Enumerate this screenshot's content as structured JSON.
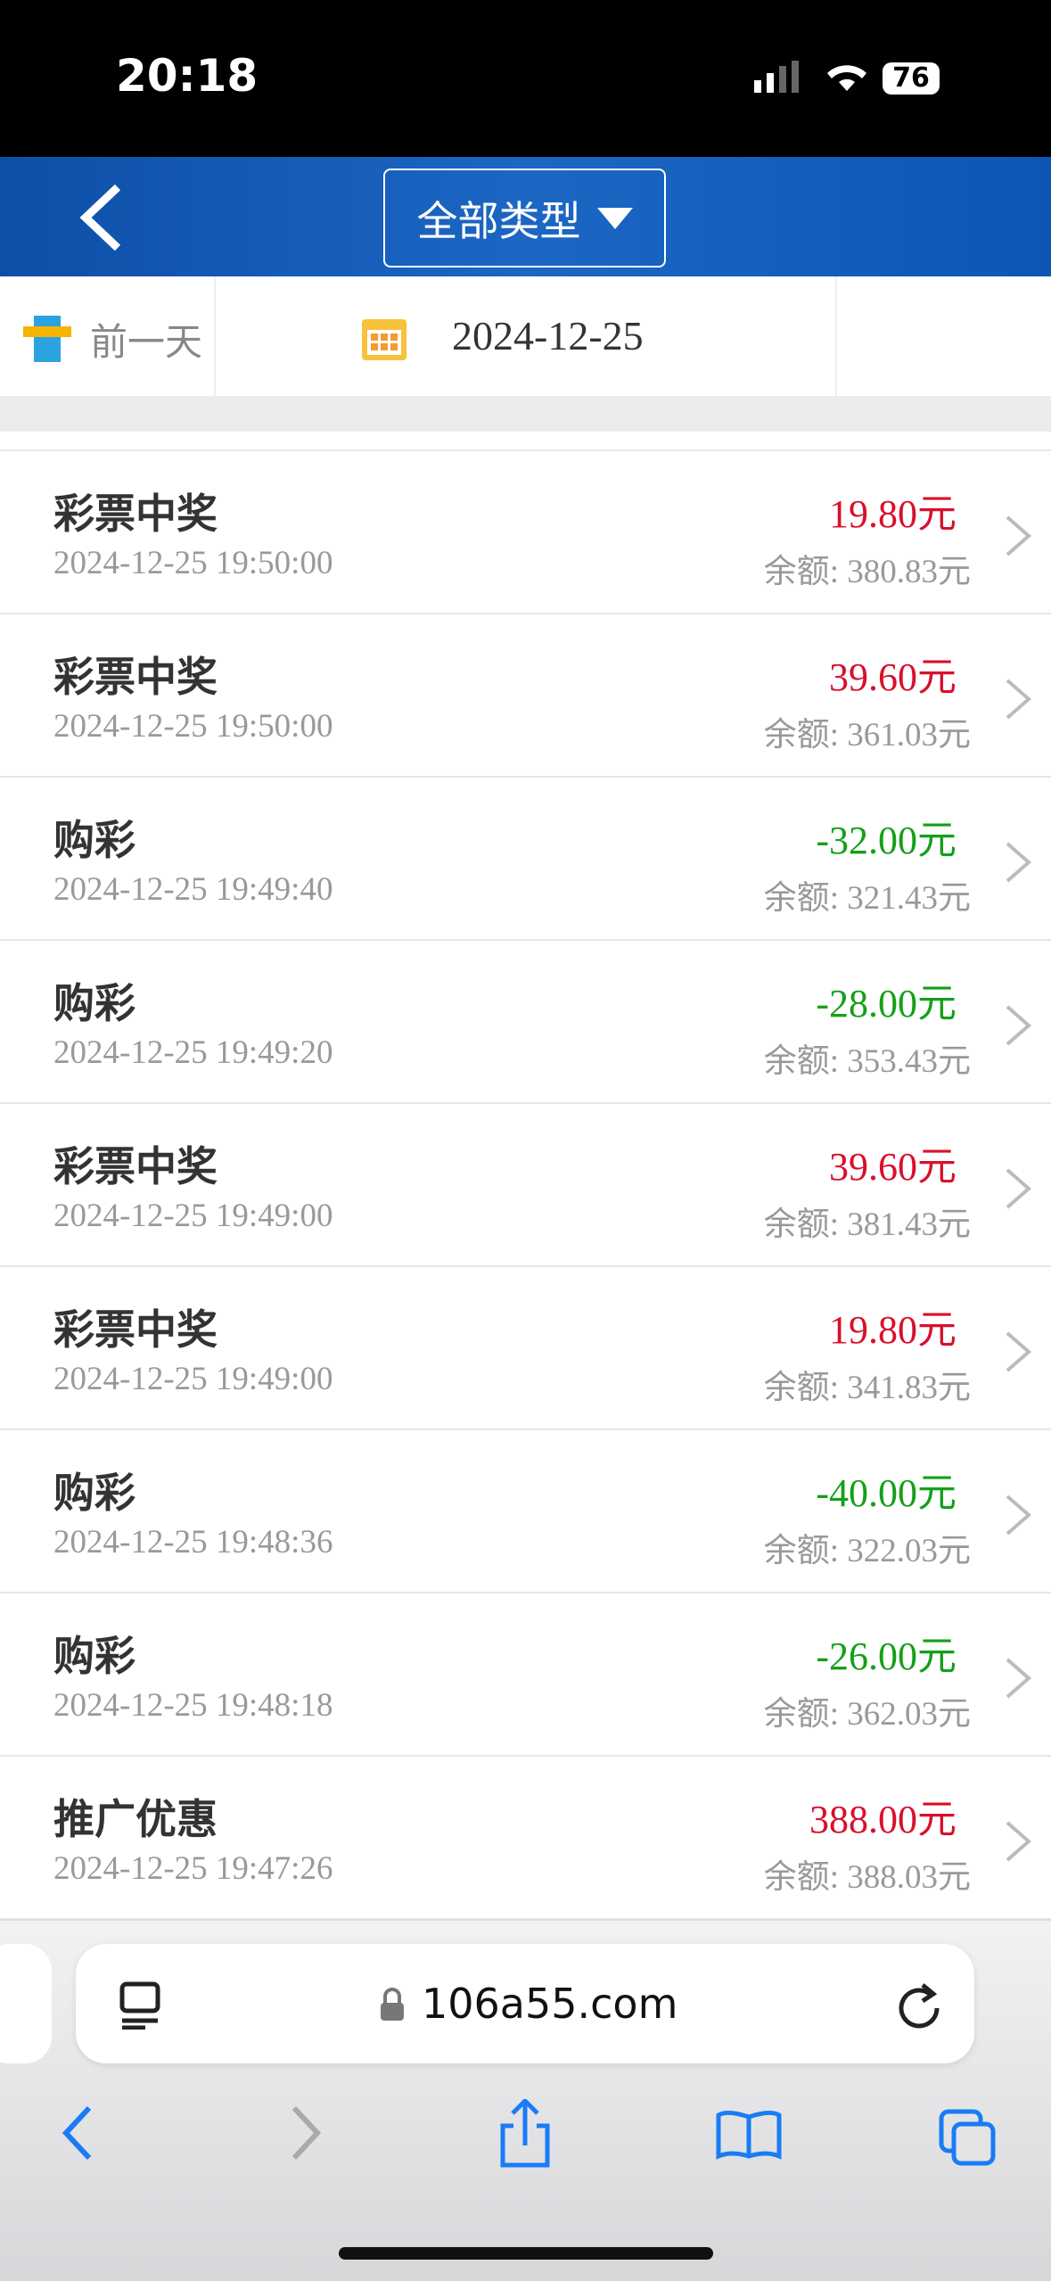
{
  "status_bar": {
    "time": "20:18",
    "battery": "76"
  },
  "header": {
    "filter": "全部类型"
  },
  "date_bar": {
    "prev_day": "前一天",
    "date": "2024-12-25"
  },
  "records": [
    {
      "title": "彩票中奖",
      "time": "2024-12-25 19:50:00",
      "amount": "19.80元",
      "balance": "余额: 380.83元"
    },
    {
      "title": "彩票中奖",
      "time": "2024-12-25 19:50:00",
      "amount": "39.60元",
      "balance": "余额: 361.03元"
    },
    {
      "title": "购彩",
      "time": "2024-12-25 19:49:40",
      "amount": "-32.00元",
      "balance": "余额: 321.43元"
    },
    {
      "title": "购彩",
      "time": "2024-12-25 19:49:20",
      "amount": "-28.00元",
      "balance": "余额: 353.43元"
    },
    {
      "title": "彩票中奖",
      "time": "2024-12-25 19:49:00",
      "amount": "39.60元",
      "balance": "余额: 381.43元"
    },
    {
      "title": "彩票中奖",
      "time": "2024-12-25 19:49:00",
      "amount": "19.80元",
      "balance": "余额: 341.83元"
    },
    {
      "title": "购彩",
      "time": "2024-12-25 19:48:36",
      "amount": "-40.00元",
      "balance": "余额: 322.03元"
    },
    {
      "title": "购彩",
      "time": "2024-12-25 19:48:18",
      "amount": "-26.00元",
      "balance": "余额: 362.03元"
    },
    {
      "title": "推广优惠",
      "time": "2024-12-25 19:47:26",
      "amount": "388.00元",
      "balance": "余额: 388.03元"
    }
  ],
  "browser": {
    "url": "106a55.com"
  }
}
